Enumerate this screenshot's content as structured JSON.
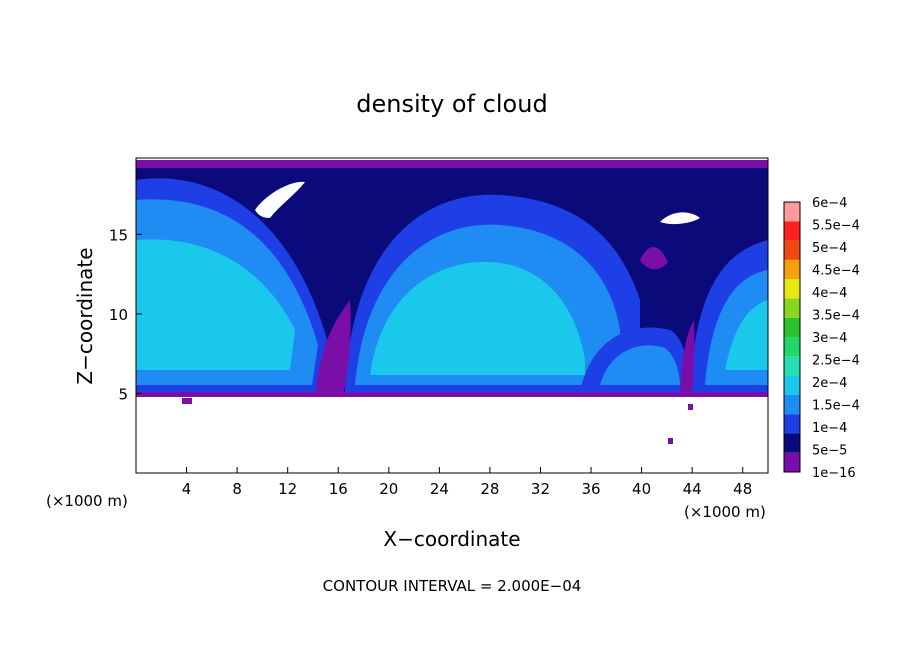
{
  "chart_data": {
    "type": "heatmap",
    "title": "density of cloud",
    "xlabel": "X−coordinate",
    "ylabel": "Z−coordinate",
    "x_unit": "(×1000 m)",
    "x_unit_right": "(×1000 m)",
    "xlim": [
      0,
      50
    ],
    "ylim": [
      0,
      19.8
    ],
    "x_ticks": [
      4,
      8,
      12,
      16,
      20,
      24,
      28,
      32,
      36,
      40,
      44,
      48
    ],
    "y_ticks": [
      5,
      10,
      15
    ],
    "footer": "CONTOUR INTERVAL = 2.000E−04",
    "colorbar": {
      "levels": [
        "1e−16",
        "5e−5",
        "1e−4",
        "1.5e−4",
        "2e−4",
        "2.5e−4",
        "3e−4",
        "3.5e−4",
        "4e−4",
        "4.5e−4",
        "5e−4",
        "5.5e−4",
        "6e−4"
      ],
      "colors": [
        "#7a0ea8",
        "#0a0a7a",
        "#1f3fe6",
        "#1e8cf2",
        "#19c8ea",
        "#22e0b0",
        "#22d66a",
        "#2cc22c",
        "#8ad61e",
        "#e6e614",
        "#f5a00f",
        "#f04a10",
        "#ff2020",
        "#ff9a9a"
      ]
    },
    "cloud_base_z": 5,
    "cloud_top_z": 19.8
  }
}
